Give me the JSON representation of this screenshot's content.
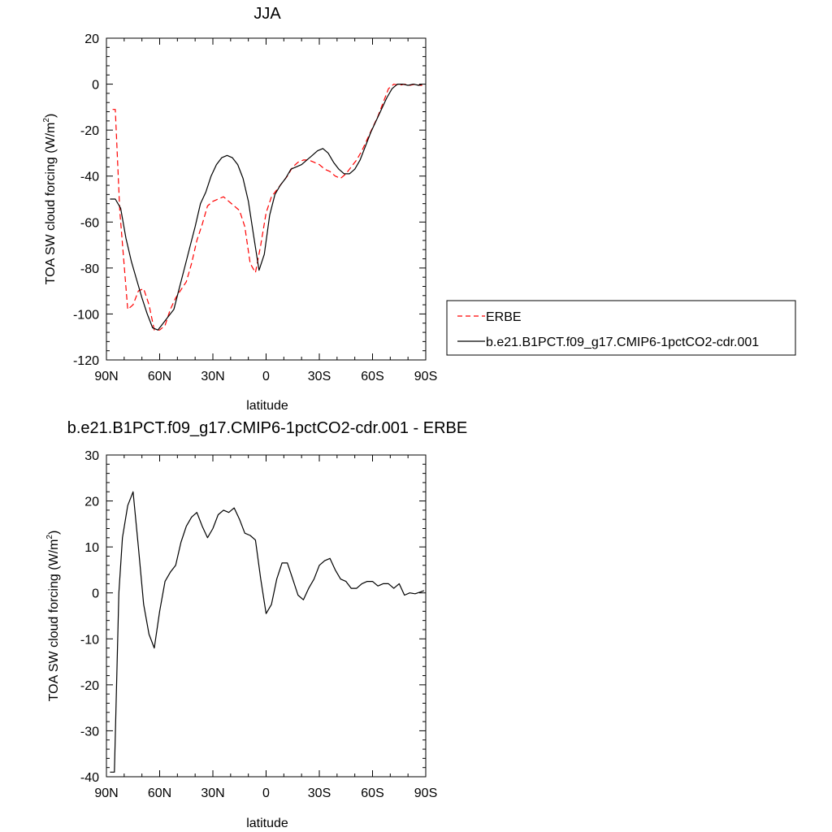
{
  "chart_data": [
    {
      "type": "line",
      "title": "JJA",
      "xlabel": "latitude",
      "ylabel_main": "TOA SW cloud forcing (W/m",
      "ylabel_sup": "2",
      "ylabel_close": ")",
      "xlim": [
        90,
        -90
      ],
      "ylim": [
        -120,
        20
      ],
      "x_ticks": [
        90,
        60,
        30,
        0,
        -30,
        -60,
        -90
      ],
      "x_tick_labels": [
        "90N",
        "60N",
        "30N",
        "0",
        "30S",
        "60S",
        "90S"
      ],
      "y_ticks": [
        -120,
        -100,
        -80,
        -60,
        -40,
        -20,
        0,
        20
      ],
      "y_tick_labels": [
        "-120",
        "-100",
        "-80",
        "-60",
        "-40",
        "-20",
        "0",
        "20"
      ],
      "grid": false,
      "legend_position": "right",
      "series": [
        {
          "name": "ERBE",
          "color": "#ff0000",
          "dash": true,
          "points": [
            [
              86.5,
              -11
            ],
            [
              85,
              -11
            ],
            [
              82.5,
              -55
            ],
            [
              78,
              -98
            ],
            [
              75,
              -96
            ],
            [
              72,
              -90
            ],
            [
              69,
              -89
            ],
            [
              66,
              -96
            ],
            [
              63,
              -107
            ],
            [
              60,
              -107
            ],
            [
              57,
              -105
            ],
            [
              54,
              -98
            ],
            [
              51,
              -93
            ],
            [
              45,
              -86
            ],
            [
              42,
              -78
            ],
            [
              39,
              -68
            ],
            [
              36,
              -61
            ],
            [
              33,
              -53
            ],
            [
              30,
              -51
            ],
            [
              27,
              -50
            ],
            [
              24,
              -49
            ],
            [
              21,
              -51
            ],
            [
              18,
              -53
            ],
            [
              15,
              -55
            ],
            [
              12,
              -62
            ],
            [
              9,
              -78
            ],
            [
              6,
              -82
            ],
            [
              3,
              -70
            ],
            [
              0,
              -56
            ],
            [
              -3,
              -49
            ],
            [
              -6,
              -46
            ],
            [
              -9,
              -43
            ],
            [
              -12,
              -40
            ],
            [
              -15,
              -36
            ],
            [
              -18,
              -34
            ],
            [
              -21,
              -33
            ],
            [
              -24,
              -33
            ],
            [
              -27,
              -34
            ],
            [
              -30,
              -35
            ],
            [
              -33,
              -37
            ],
            [
              -36,
              -38
            ],
            [
              -39,
              -40
            ],
            [
              -42,
              -41
            ],
            [
              -45,
              -39
            ],
            [
              -48,
              -36
            ],
            [
              -51,
              -33
            ],
            [
              -54,
              -29
            ],
            [
              -57,
              -24
            ],
            [
              -60,
              -19
            ],
            [
              -63,
              -14
            ],
            [
              -66,
              -8
            ],
            [
              -69,
              -2
            ],
            [
              -72,
              0
            ],
            [
              -75,
              -0.5
            ],
            [
              -78,
              0
            ],
            [
              -81,
              -0.5
            ],
            [
              -84,
              0
            ],
            [
              -87,
              -0.5
            ],
            [
              -88,
              -0.5
            ]
          ]
        },
        {
          "name": "b.e21.B1PCT.f09_g17.CMIP6-1pctCO2-cdr.001",
          "color": "#000000",
          "dash": false,
          "points": [
            [
              88,
              -50
            ],
            [
              85,
              -50
            ],
            [
              82,
              -54
            ],
            [
              79,
              -67
            ],
            [
              76,
              -77
            ],
            [
              73,
              -85
            ],
            [
              70,
              -93
            ],
            [
              67,
              -100
            ],
            [
              64,
              -106
            ],
            [
              61,
              -107
            ],
            [
              58,
              -104
            ],
            [
              55,
              -101
            ],
            [
              52,
              -98
            ],
            [
              49,
              -89
            ],
            [
              46,
              -80
            ],
            [
              43,
              -71
            ],
            [
              40,
              -62
            ],
            [
              37,
              -52
            ],
            [
              34,
              -47
            ],
            [
              31,
              -40
            ],
            [
              28,
              -35
            ],
            [
              25,
              -32
            ],
            [
              22,
              -31
            ],
            [
              19,
              -32
            ],
            [
              16,
              -35
            ],
            [
              13,
              -41
            ],
            [
              10,
              -51
            ],
            [
              7,
              -66
            ],
            [
              4,
              -81
            ],
            [
              1,
              -74
            ],
            [
              -2,
              -57
            ],
            [
              -5,
              -48
            ],
            [
              -8,
              -44
            ],
            [
              -11,
              -41
            ],
            [
              -14,
              -37
            ],
            [
              -17,
              -36
            ],
            [
              -20,
              -35
            ],
            [
              -23,
              -33
            ],
            [
              -26,
              -31
            ],
            [
              -29,
              -29
            ],
            [
              -32,
              -28
            ],
            [
              -35,
              -30
            ],
            [
              -38,
              -34
            ],
            [
              -41,
              -37
            ],
            [
              -44,
              -39
            ],
            [
              -47,
              -39
            ],
            [
              -50,
              -37
            ],
            [
              -53,
              -33
            ],
            [
              -56,
              -27
            ],
            [
              -59,
              -21
            ],
            [
              -62,
              -16
            ],
            [
              -65,
              -11
            ],
            [
              -68,
              -6
            ],
            [
              -71,
              -2
            ],
            [
              -74,
              0
            ],
            [
              -77,
              0
            ],
            [
              -80,
              -0.5
            ],
            [
              -83,
              0
            ],
            [
              -86,
              -0.5
            ],
            [
              -88,
              0
            ]
          ]
        }
      ]
    },
    {
      "type": "line",
      "title": "b.e21.B1PCT.f09_g17.CMIP6-1pctCO2-cdr.001 - ERBE",
      "xlabel": "latitude",
      "ylabel_main": "TOA SW cloud forcing (W/m",
      "ylabel_sup": "2",
      "ylabel_close": ")",
      "xlim": [
        90,
        -90
      ],
      "ylim": [
        -40,
        30
      ],
      "x_ticks": [
        90,
        60,
        30,
        0,
        -30,
        -60,
        -90
      ],
      "x_tick_labels": [
        "90N",
        "60N",
        "30N",
        "0",
        "30S",
        "60S",
        "90S"
      ],
      "y_ticks": [
        -40,
        -30,
        -20,
        -10,
        0,
        10,
        20,
        30
      ],
      "y_tick_labels": [
        "-40",
        "-30",
        "-20",
        "-10",
        "0",
        "10",
        "20",
        "30"
      ],
      "grid": false,
      "series": [
        {
          "color": "#000000",
          "dash": false,
          "points": [
            [
              88,
              -39
            ],
            [
              85.5,
              -39
            ],
            [
              83,
              0
            ],
            [
              81,
              12
            ],
            [
              78,
              19
            ],
            [
              75,
              22
            ],
            [
              72,
              10
            ],
            [
              69,
              -2.5
            ],
            [
              66,
              -9
            ],
            [
              63,
              -12
            ],
            [
              60,
              -4
            ],
            [
              57,
              2.5
            ],
            [
              54,
              4.5
            ],
            [
              51,
              6
            ],
            [
              48,
              11
            ],
            [
              45,
              14.5
            ],
            [
              42,
              16.5
            ],
            [
              39,
              17.5
            ],
            [
              36,
              14.5
            ],
            [
              33,
              12
            ],
            [
              30,
              14
            ],
            [
              27,
              17
            ],
            [
              24,
              18
            ],
            [
              21,
              17.5
            ],
            [
              18,
              18.5
            ],
            [
              15,
              16
            ],
            [
              12,
              13
            ],
            [
              9,
              12.5
            ],
            [
              6,
              11.5
            ],
            [
              3,
              3
            ],
            [
              0,
              -4.5
            ],
            [
              -3,
              -2.5
            ],
            [
              -6,
              3
            ],
            [
              -9,
              6.5
            ],
            [
              -12,
              6.5
            ],
            [
              -15,
              3
            ],
            [
              -18,
              -0.5
            ],
            [
              -21,
              -1.5
            ],
            [
              -24,
              1
            ],
            [
              -27,
              3
            ],
            [
              -30,
              6
            ],
            [
              -33,
              7
            ],
            [
              -36,
              7.5
            ],
            [
              -39,
              5
            ],
            [
              -42,
              3
            ],
            [
              -45,
              2.5
            ],
            [
              -48,
              1
            ],
            [
              -51,
              1
            ],
            [
              -54,
              2
            ],
            [
              -57,
              2.5
            ],
            [
              -60,
              2.5
            ],
            [
              -63,
              1.5
            ],
            [
              -66,
              2
            ],
            [
              -69,
              2
            ],
            [
              -72,
              1
            ],
            [
              -75,
              2
            ],
            [
              -78,
              -0.5
            ],
            [
              -81,
              0
            ],
            [
              -84,
              -0.2
            ],
            [
              -87,
              0.2
            ],
            [
              -89,
              0.5
            ]
          ]
        }
      ]
    }
  ]
}
